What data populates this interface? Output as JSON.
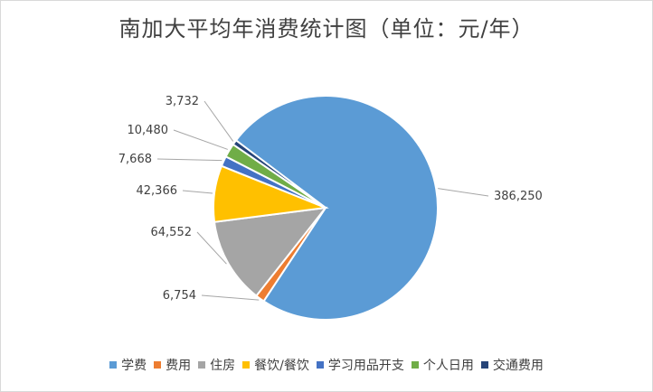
{
  "chart_data": {
    "type": "pie",
    "title": "南加大平均年消费统计图（单位：元/年）",
    "categories": [
      "学费",
      "费用",
      "住房",
      "餐饮/餐饮",
      "学习用品开支",
      "个人日用",
      "交通费用"
    ],
    "values": [
      386250,
      6754,
      64552,
      42366,
      7668,
      10480,
      3732
    ],
    "labels": [
      "386,250",
      "6,754",
      "64,552",
      "42,366",
      "7,668",
      "10,480",
      "3,732"
    ],
    "colors": [
      "#5b9bd5",
      "#ed7d31",
      "#a5a5a5",
      "#ffc000",
      "#4472c4",
      "#70ad47",
      "#264478"
    ],
    "legend_position": "bottom"
  }
}
